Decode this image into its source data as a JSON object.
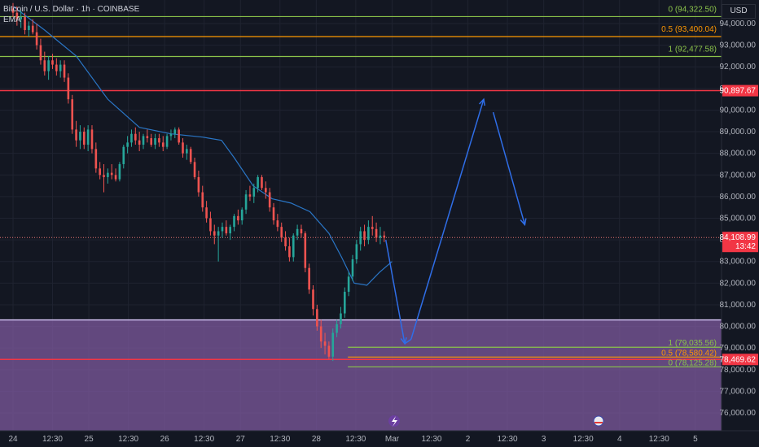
{
  "header": {
    "symbol_title": "Bitcoin / U.S. Dollar · 1h · COINBASE",
    "indicator": "EMA",
    "currency_button": "USD"
  },
  "colors": {
    "background": "#131722",
    "grid": "#1f2330",
    "bull": "#26a69a",
    "bear": "#ef5350",
    "ema": "#2a76c6",
    "fib_green": "#8bc34a",
    "fib_orange": "#ff9800",
    "level_red": "#f23645",
    "zone_fill": "#7e5a9e",
    "arrow": "#2f6ee8"
  },
  "chart_data": {
    "type": "candlestick",
    "y_axis": {
      "ylim": [
        75500,
        94700
      ],
      "ticks": [
        "94,000.00",
        "93,000.00",
        "92,000.00",
        "91,000.00",
        "90,000.00",
        "89,000.00",
        "88,000.00",
        "87,000.00",
        "86,000.00",
        "85,000.00",
        "84,000.00",
        "83,000.00",
        "82,000.00",
        "81,000.00",
        "80,000.00",
        "79,000.00",
        "78,000.00",
        "77,000.00",
        "76,000.00"
      ],
      "tick_values": [
        94000,
        93000,
        92000,
        91000,
        90000,
        89000,
        88000,
        87000,
        86000,
        85000,
        84000,
        83000,
        82000,
        81000,
        80000,
        79000,
        78000,
        77000,
        76000
      ]
    },
    "x_axis": {
      "ticks": [
        "24",
        "12:30",
        "25",
        "12:30",
        "26",
        "12:30",
        "27",
        "12:30",
        "28",
        "12:30",
        "Mar",
        "12:30",
        "2",
        "12:30",
        "3",
        "12:30",
        "4",
        "12:30",
        "5"
      ],
      "tick_hours": [
        0,
        12.5,
        24,
        36.5,
        48,
        60.5,
        72,
        84.5,
        96,
        108.5,
        120,
        132.5,
        144,
        156.5,
        168,
        180.5,
        192,
        204.5,
        216
      ]
    },
    "candles": [
      [
        94700,
        94950,
        94300,
        94500
      ],
      [
        94500,
        94800,
        93900,
        94200
      ],
      [
        94200,
        94600,
        93800,
        94300
      ],
      [
        94300,
        94500,
        93500,
        93700
      ],
      [
        93700,
        94100,
        93400,
        93900
      ],
      [
        93900,
        94200,
        93500,
        93600
      ],
      [
        93600,
        94000,
        92800,
        93000
      ],
      [
        93000,
        93300,
        92100,
        92300
      ],
      [
        92300,
        92700,
        91600,
        91800
      ],
      [
        91800,
        92500,
        91400,
        92300
      ],
      [
        92300,
        92600,
        91900,
        92100
      ],
      [
        92100,
        92400,
        91600,
        91800
      ],
      [
        91800,
        92300,
        91500,
        92100
      ],
      [
        92100,
        92300,
        91300,
        91500
      ],
      [
        91500,
        91700,
        90300,
        90500
      ],
      [
        90500,
        90700,
        88900,
        89100
      ],
      [
        89100,
        89500,
        88300,
        88600
      ],
      [
        88600,
        89300,
        88200,
        89000
      ],
      [
        89000,
        89200,
        88200,
        88400
      ],
      [
        88400,
        89300,
        88100,
        89100
      ],
      [
        89100,
        89300,
        88000,
        88200
      ],
      [
        88200,
        88500,
        87100,
        87300
      ],
      [
        87300,
        87600,
        86800,
        87000
      ],
      [
        87000,
        87500,
        86200,
        86900
      ],
      [
        86900,
        87300,
        86600,
        87100
      ],
      [
        87100,
        87500,
        86800,
        87000
      ],
      [
        87000,
        87300,
        86700,
        86800
      ],
      [
        86800,
        87600,
        86700,
        87500
      ],
      [
        87500,
        88400,
        87300,
        88300
      ],
      [
        88300,
        88800,
        88000,
        88500
      ],
      [
        88500,
        89100,
        88300,
        88900
      ],
      [
        88900,
        89200,
        88400,
        88600
      ],
      [
        88600,
        89000,
        88100,
        88400
      ],
      [
        88400,
        88900,
        88200,
        88800
      ],
      [
        88800,
        89100,
        88500,
        88700
      ],
      [
        88700,
        88900,
        88300,
        88400
      ],
      [
        88400,
        88900,
        88200,
        88700
      ],
      [
        88700,
        88900,
        88300,
        88500
      ],
      [
        88500,
        88800,
        88100,
        88300
      ],
      [
        88300,
        88900,
        88200,
        88800
      ],
      [
        88800,
        89100,
        88600,
        88900
      ],
      [
        88900,
        89200,
        88700,
        89100
      ],
      [
        89100,
        89200,
        88400,
        88500
      ],
      [
        88500,
        88700,
        87800,
        88000
      ],
      [
        88000,
        88400,
        87700,
        88200
      ],
      [
        88200,
        88300,
        87500,
        87600
      ],
      [
        87600,
        87800,
        86800,
        86900
      ],
      [
        86900,
        87200,
        86000,
        86200
      ],
      [
        86200,
        86500,
        85300,
        85500
      ],
      [
        85500,
        85800,
        84800,
        85000
      ],
      [
        85000,
        85300,
        84200,
        84400
      ],
      [
        84400,
        84700,
        83800,
        84200
      ],
      [
        84200,
        84600,
        83000,
        84400
      ],
      [
        84400,
        84800,
        84100,
        84600
      ],
      [
        84600,
        84900,
        84200,
        84300
      ],
      [
        84300,
        84700,
        84000,
        84600
      ],
      [
        84600,
        85200,
        84400,
        85100
      ],
      [
        85100,
        85400,
        84700,
        84900
      ],
      [
        84900,
        85500,
        84700,
        85400
      ],
      [
        85400,
        86300,
        85200,
        86100
      ],
      [
        86100,
        86500,
        85800,
        86000
      ],
      [
        86000,
        86600,
        85700,
        86400
      ],
      [
        86400,
        87000,
        86200,
        86900
      ],
      [
        86900,
        87000,
        86300,
        86400
      ],
      [
        86400,
        86700,
        85900,
        86200
      ],
      [
        86200,
        86400,
        85300,
        85500
      ],
      [
        85500,
        85700,
        84700,
        84900
      ],
      [
        84900,
        85200,
        84400,
        84600
      ],
      [
        84600,
        84800,
        83900,
        84100
      ],
      [
        84100,
        84400,
        83500,
        83700
      ],
      [
        83700,
        84100,
        83000,
        83200
      ],
      [
        83200,
        84300,
        83000,
        84200
      ],
      [
        84200,
        84700,
        84000,
        84500
      ],
      [
        84500,
        84700,
        84100,
        84300
      ],
      [
        84300,
        84400,
        82500,
        82700
      ],
      [
        82700,
        82900,
        81500,
        81700
      ],
      [
        81700,
        81900,
        80500,
        80800
      ],
      [
        80800,
        81000,
        79800,
        80000
      ],
      [
        80000,
        80300,
        79000,
        79300
      ],
      [
        79300,
        79700,
        78700,
        79100
      ],
      [
        79100,
        79300,
        78500,
        78600
      ],
      [
        78600,
        79900,
        78400,
        79700
      ],
      [
        79700,
        80300,
        79500,
        80100
      ],
      [
        80100,
        80900,
        79900,
        80600
      ],
      [
        80600,
        81800,
        80400,
        81600
      ],
      [
        81600,
        82500,
        81400,
        82300
      ],
      [
        82300,
        83300,
        82100,
        83100
      ],
      [
        83100,
        84000,
        82900,
        83800
      ],
      [
        83800,
        84600,
        83500,
        84400
      ],
      [
        84400,
        84700,
        83700,
        84000
      ],
      [
        84000,
        84900,
        83800,
        84600
      ],
      [
        84600,
        85100,
        84200,
        84500
      ],
      [
        84500,
        84800,
        83900,
        84100
      ],
      [
        84100,
        84600,
        83800,
        84200
      ],
      [
        84200,
        84400,
        83900,
        84100
      ]
    ],
    "ema": [
      [
        0,
        94800
      ],
      [
        10,
        93700
      ],
      [
        20,
        92500
      ],
      [
        30,
        90500
      ],
      [
        40,
        89200
      ],
      [
        50,
        88900
      ],
      [
        60,
        88750
      ],
      [
        66,
        88600
      ],
      [
        70,
        87800
      ],
      [
        76,
        86500
      ],
      [
        82,
        85900
      ],
      [
        88,
        85700
      ],
      [
        94,
        85300
      ],
      [
        100,
        84300
      ],
      [
        104,
        83200
      ],
      [
        108,
        82000
      ],
      [
        112,
        81900
      ],
      [
        116,
        82500
      ],
      [
        120,
        83000
      ]
    ],
    "fib_levels_top": [
      {
        "label": "0 (94,322.50)",
        "value": 94322.5,
        "color": "#8bc34a"
      },
      {
        "label": "0.5 (93,400.04)",
        "value": 93400.04,
        "color": "#ff9800"
      },
      {
        "label": "1 (92,477.58)",
        "value": 92477.58,
        "color": "#8bc34a"
      }
    ],
    "fib_levels_bottom": [
      {
        "label": "1 (79,035.56)",
        "value": 79035.56,
        "color": "#8bc34a"
      },
      {
        "label": "0.5 (78,580.42)",
        "value": 78580.42,
        "color": "#ff9800"
      },
      {
        "label": "0 (78,125.28)",
        "value": 78125.28,
        "color": "#8bc34a"
      }
    ],
    "horizontal_levels": [
      {
        "label": "90,897.67",
        "value": 90897.67,
        "color": "#f23645"
      },
      {
        "label": "78,469.62",
        "value": 78469.62,
        "color": "#f23645"
      }
    ],
    "current_price": {
      "label": "84,108.99",
      "countdown": "13:42",
      "value": 84108.99
    },
    "zone": {
      "top": 80300,
      "bottom": 75500
    },
    "projection_path": [
      [
        118,
        84000
      ],
      [
        124,
        79200
      ],
      [
        126,
        79400
      ],
      [
        149,
        90500
      ],
      [
        152,
        89900
      ],
      [
        162,
        84700
      ]
    ]
  }
}
